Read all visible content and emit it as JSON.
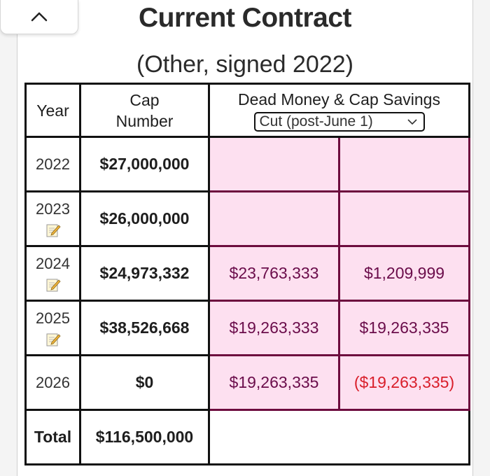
{
  "header": {
    "title": "Current Contract",
    "subtitle": "(Other, signed 2022)"
  },
  "table": {
    "col_year": "Year",
    "col_cap_line1": "Cap",
    "col_cap_line2": "Number",
    "col_dead": "Dead Money & Cap Savings",
    "scenario_select": {
      "selected": "Cut (post-June 1)"
    },
    "rows": [
      {
        "year": "2022",
        "note_icon": false,
        "cap": "$27,000,000",
        "dead": "",
        "savings": ""
      },
      {
        "year": "2023",
        "note_icon": true,
        "cap": "$26,000,000",
        "dead": "",
        "savings": ""
      },
      {
        "year": "2024",
        "note_icon": true,
        "cap": "$24,973,332",
        "dead": "$23,763,333",
        "savings": "$1,209,999"
      },
      {
        "year": "2025",
        "note_icon": true,
        "cap": "$38,526,668",
        "dead": "$19,263,333",
        "savings": "$19,263,335"
      },
      {
        "year": "2026",
        "note_icon": false,
        "cap": "$0",
        "dead": "$19,263,335",
        "savings": "($19,263,335)"
      }
    ],
    "total_label": "Total",
    "total_cap": "$116,500,000"
  },
  "colors": {
    "highlight_bg": "#fde0f0",
    "highlight_border": "#6d0c3e",
    "negative_text": "#d91e2a"
  },
  "icons": {
    "collapse": "chevron-up-icon",
    "note": "note-pencil-icon"
  }
}
